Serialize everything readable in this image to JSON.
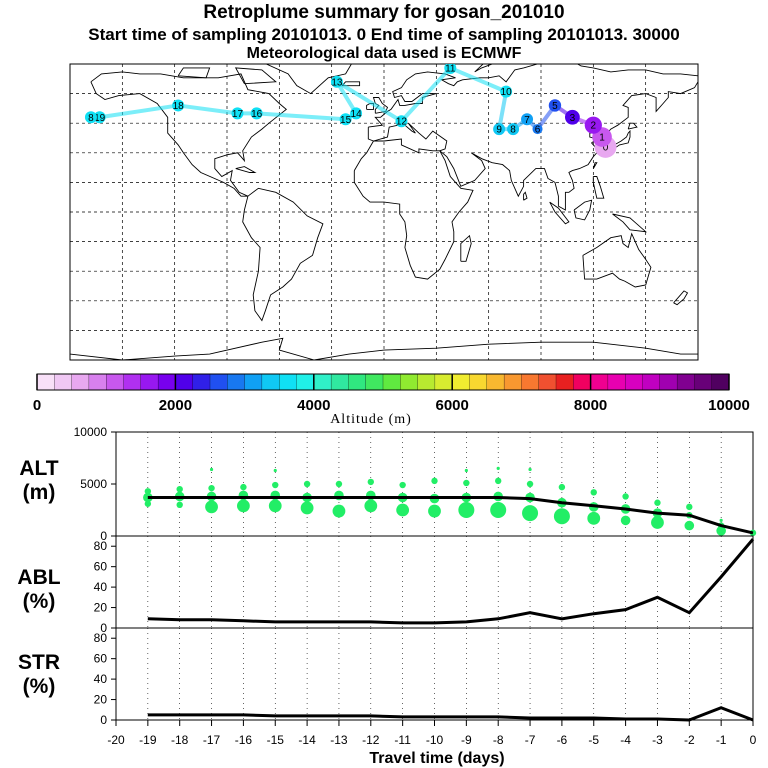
{
  "header": {
    "title": "Retroplume summary for gosan_201010",
    "subtitle": "Start time of sampling 20101013.     0     End time of sampling 20101013. 30000",
    "met_line": "Meteorological data used is ECMWF"
  },
  "colors": {
    "colorbar": [
      "#f8e0f8",
      "#f0c8f4",
      "#e8a8f0",
      "#d880ee",
      "#c858ee",
      "#b030f0",
      "#9818f0",
      "#7800ee",
      "#5000ea",
      "#3020e8",
      "#2050f0",
      "#1878f0",
      "#10a0f4",
      "#10c8f4",
      "#10e0f4",
      "#20f0e8",
      "#30f0c8",
      "#30e8a0",
      "#30e880",
      "#40e860",
      "#60ea40",
      "#90ea30",
      "#b8ea30",
      "#d8ec30",
      "#f0ec30",
      "#f8d830",
      "#f8b830",
      "#f89830",
      "#f87830",
      "#f05030",
      "#e82020",
      "#f00060",
      "#f00090",
      "#e800b0",
      "#d800c0",
      "#c000c0",
      "#a000b0",
      "#800090",
      "#680078",
      "#500060"
    ],
    "plume_green": "#22ee66"
  },
  "chart_data": [
    {
      "type": "map",
      "title": "Retroplume summary for gosan_201010",
      "colorbar_label": "Altitude (m)",
      "colorbar_ticks": [
        "0",
        "2000",
        "4000",
        "6000",
        "8000",
        "10000"
      ],
      "colorbar_range": [
        0,
        10000
      ],
      "plume_labels": [
        {
          "day": "0",
          "lon": 127,
          "lat": 33,
          "alt": 700
        },
        {
          "day": "1",
          "lon": 125,
          "lat": 38,
          "alt": 1200
        },
        {
          "day": "2",
          "lon": 120,
          "lat": 44,
          "alt": 1600
        },
        {
          "day": "3",
          "lon": 108,
          "lat": 48,
          "alt": 2200
        },
        {
          "day": "5",
          "lon": 98,
          "lat": 54,
          "alt": 2600
        },
        {
          "day": "6",
          "lon": 88,
          "lat": 42,
          "alt": 2900
        },
        {
          "day": "7",
          "lon": 82,
          "lat": 47,
          "alt": 3100
        },
        {
          "day": "8",
          "lon": 74,
          "lat": 42,
          "alt": 3300
        },
        {
          "day": "9",
          "lon": 66,
          "lat": 42,
          "alt": 3400
        },
        {
          "day": "10",
          "lon": 70,
          "lat": 61,
          "alt": 3600
        },
        {
          "day": "11",
          "lon": 38,
          "lat": 73,
          "alt": 3600
        },
        {
          "day": "12",
          "lon": 10,
          "lat": 46,
          "alt": 3700
        },
        {
          "day": "13",
          "lon": -27,
          "lat": 66,
          "alt": 3700
        },
        {
          "day": "14",
          "lon": -16,
          "lat": 50,
          "alt": 3700
        },
        {
          "day": "15",
          "lon": -22,
          "lat": 47,
          "alt": 3700
        },
        {
          "day": "16",
          "lon": -73,
          "lat": 50,
          "alt": 3700
        },
        {
          "day": "17",
          "lon": -84,
          "lat": 50,
          "alt": 3700
        },
        {
          "day": "18",
          "lon": -118,
          "lat": 54,
          "alt": 3700
        },
        {
          "day": "19",
          "lon": -163,
          "lat": 48,
          "alt": 3700
        },
        {
          "day": "8",
          "lon": -168,
          "lat": 48,
          "alt": 3700
        }
      ]
    },
    {
      "type": "scatter",
      "name": "ALT",
      "ylabel_lines": [
        "ALT",
        "(m)"
      ],
      "ylim": [
        0,
        10000
      ],
      "yticks": [
        "0",
        "5000",
        "10000"
      ],
      "x": [
        -19,
        -18,
        -17,
        -16,
        -15,
        -14,
        -13,
        -12,
        -11,
        -10,
        -9,
        -8,
        -7,
        -6,
        -5,
        -4,
        -3,
        -2,
        -1,
        0
      ],
      "mean_altitude": [
        3700,
        3700,
        3700,
        3700,
        3700,
        3700,
        3700,
        3700,
        3700,
        3700,
        3700,
        3700,
        3600,
        3200,
        2900,
        2600,
        2200,
        2000,
        1000,
        300
      ],
      "plume_points": [
        {
          "x": -19,
          "y": 3700,
          "size": 3
        },
        {
          "x": -19,
          "y": 4300,
          "size": 2
        },
        {
          "x": -19,
          "y": 3100,
          "size": 2
        },
        {
          "x": -18,
          "y": 3800,
          "size": 3
        },
        {
          "x": -18,
          "y": 4500,
          "size": 2
        },
        {
          "x": -18,
          "y": 3000,
          "size": 2
        },
        {
          "x": -17,
          "y": 3800,
          "size": 3
        },
        {
          "x": -17,
          "y": 2800,
          "size": 4
        },
        {
          "x": -17,
          "y": 4600,
          "size": 2
        },
        {
          "x": -17,
          "y": 6400,
          "size": 1
        },
        {
          "x": -16,
          "y": 3900,
          "size": 3
        },
        {
          "x": -16,
          "y": 2900,
          "size": 4
        },
        {
          "x": -16,
          "y": 4700,
          "size": 2
        },
        {
          "x": -15,
          "y": 3900,
          "size": 3
        },
        {
          "x": -15,
          "y": 2900,
          "size": 4
        },
        {
          "x": -15,
          "y": 4900,
          "size": 2
        },
        {
          "x": -15,
          "y": 6300,
          "size": 1
        },
        {
          "x": -14,
          "y": 3700,
          "size": 3
        },
        {
          "x": -14,
          "y": 2700,
          "size": 4
        },
        {
          "x": -14,
          "y": 5000,
          "size": 2
        },
        {
          "x": -13,
          "y": 3900,
          "size": 3
        },
        {
          "x": -13,
          "y": 2400,
          "size": 4
        },
        {
          "x": -13,
          "y": 5000,
          "size": 2
        },
        {
          "x": -12,
          "y": 3900,
          "size": 3
        },
        {
          "x": -12,
          "y": 2900,
          "size": 4
        },
        {
          "x": -12,
          "y": 5200,
          "size": 2
        },
        {
          "x": -11,
          "y": 3700,
          "size": 3
        },
        {
          "x": -11,
          "y": 2500,
          "size": 4
        },
        {
          "x": -11,
          "y": 4900,
          "size": 2
        },
        {
          "x": -10,
          "y": 3600,
          "size": 3
        },
        {
          "x": -10,
          "y": 2400,
          "size": 4
        },
        {
          "x": -10,
          "y": 5300,
          "size": 2
        },
        {
          "x": -9,
          "y": 3700,
          "size": 3
        },
        {
          "x": -9,
          "y": 2500,
          "size": 5
        },
        {
          "x": -9,
          "y": 5100,
          "size": 2
        },
        {
          "x": -9,
          "y": 6300,
          "size": 1
        },
        {
          "x": -8,
          "y": 3800,
          "size": 3
        },
        {
          "x": -8,
          "y": 2500,
          "size": 5
        },
        {
          "x": -8,
          "y": 5300,
          "size": 2
        },
        {
          "x": -8,
          "y": 6500,
          "size": 1
        },
        {
          "x": -7,
          "y": 3700,
          "size": 3
        },
        {
          "x": -7,
          "y": 2200,
          "size": 5
        },
        {
          "x": -7,
          "y": 5000,
          "size": 2
        },
        {
          "x": -7,
          "y": 6400,
          "size": 1
        },
        {
          "x": -6,
          "y": 3200,
          "size": 3
        },
        {
          "x": -6,
          "y": 1900,
          "size": 5
        },
        {
          "x": -6,
          "y": 4700,
          "size": 2
        },
        {
          "x": -5,
          "y": 2800,
          "size": 3
        },
        {
          "x": -5,
          "y": 1700,
          "size": 4
        },
        {
          "x": -5,
          "y": 4200,
          "size": 2
        },
        {
          "x": -4,
          "y": 2600,
          "size": 3
        },
        {
          "x": -4,
          "y": 1500,
          "size": 3
        },
        {
          "x": -4,
          "y": 3800,
          "size": 2
        },
        {
          "x": -3,
          "y": 2200,
          "size": 3
        },
        {
          "x": -3,
          "y": 1300,
          "size": 4
        },
        {
          "x": -3,
          "y": 3200,
          "size": 2
        },
        {
          "x": -2,
          "y": 2000,
          "size": 2
        },
        {
          "x": -2,
          "y": 1000,
          "size": 3
        },
        {
          "x": -2,
          "y": 2800,
          "size": 2
        },
        {
          "x": -1,
          "y": 1000,
          "size": 2
        },
        {
          "x": -1,
          "y": 500,
          "size": 3
        },
        {
          "x": -1,
          "y": 1500,
          "size": 1
        },
        {
          "x": 0,
          "y": 300,
          "size": 2
        }
      ]
    },
    {
      "type": "line",
      "name": "ABL",
      "ylabel_lines": [
        "ABL",
        "(%)"
      ],
      "ylim": [
        0,
        90
      ],
      "yticks": [
        "0",
        "20",
        "40",
        "60",
        "80"
      ],
      "x": [
        -19,
        -18,
        -17,
        -16,
        -15,
        -14,
        -13,
        -12,
        -11,
        -10,
        -9,
        -8,
        -7,
        -6,
        -5,
        -4,
        -3,
        -2,
        -1,
        0
      ],
      "values": [
        9,
        8,
        8,
        7,
        6,
        6,
        6,
        6,
        5,
        5,
        6,
        9,
        15,
        9,
        14,
        18,
        30,
        15,
        50,
        87
      ]
    },
    {
      "type": "line",
      "name": "STR",
      "ylabel_lines": [
        "STR",
        "(%)"
      ],
      "ylim": [
        0,
        90
      ],
      "yticks": [
        "0",
        "20",
        "40",
        "60",
        "80"
      ],
      "x": [
        -19,
        -18,
        -17,
        -16,
        -15,
        -14,
        -13,
        -12,
        -11,
        -10,
        -9,
        -8,
        -7,
        -6,
        -5,
        -4,
        -3,
        -2,
        -1,
        0
      ],
      "values": [
        5,
        5,
        5,
        5,
        4,
        4,
        4,
        4,
        3,
        3,
        3,
        3,
        2,
        2,
        2,
        1,
        1,
        0,
        12,
        0
      ],
      "xlim": [
        -20,
        0
      ],
      "xticks": [
        "-20",
        "-19",
        "-18",
        "-17",
        "-16",
        "-15",
        "-14",
        "-13",
        "-12",
        "-11",
        "-10",
        "-9",
        "-8",
        "-7",
        "-6",
        "-5",
        "-4",
        "-3",
        "-2",
        "-1",
        "0"
      ],
      "xlabel": "Travel time (days)"
    }
  ]
}
